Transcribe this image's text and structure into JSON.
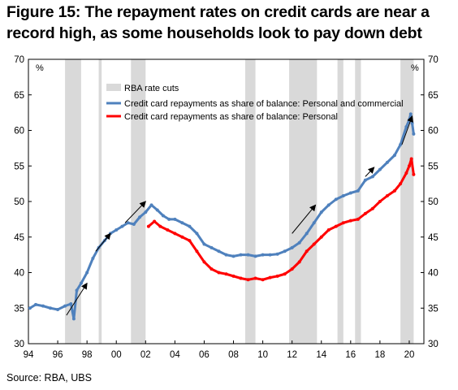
{
  "title": "Figure 15: The repayment rates on credit cards are near a record high, as some households look to pay down debt",
  "source": "Source:  RBA, UBS",
  "chart_data": {
    "type": "line",
    "title": "Figure 15: The repayment rates on credit cards are near a record high, as some households look to pay down debt",
    "xlabel": "",
    "ylabel": "%",
    "ylabel_right": "%",
    "xlim": [
      1994,
      2021
    ],
    "ylim": [
      30,
      70
    ],
    "x_ticks": [
      1994,
      1996,
      1998,
      2000,
      2002,
      2004,
      2006,
      2008,
      2010,
      2012,
      2014,
      2016,
      2018,
      2020
    ],
    "x_tick_labels": [
      "94",
      "96",
      "98",
      "00",
      "02",
      "04",
      "06",
      "08",
      "10",
      "12",
      "14",
      "16",
      "18",
      "20"
    ],
    "y_ticks": [
      30,
      35,
      40,
      45,
      50,
      55,
      60,
      65,
      70
    ],
    "grid": false,
    "legend_position": "top-center",
    "shaded_regions_name": "RBA rate cuts",
    "shaded_color": "#d9d9d9",
    "shaded_regions": [
      [
        1996.5,
        1997.6
      ],
      [
        1998.8,
        1999.0
      ],
      [
        2001.0,
        2002.0
      ],
      [
        2008.8,
        2009.5
      ],
      [
        2011.8,
        2013.7
      ],
      [
        2015.1,
        2015.5
      ],
      [
        2016.3,
        2016.7
      ],
      [
        2019.4,
        2020.3
      ]
    ],
    "series": [
      {
        "name": "Credit card repayments as share of balance: Personal and commercial",
        "color": "#4f81bd",
        "x": [
          1994.1,
          1994.5,
          1995.0,
          1995.5,
          1996.0,
          1996.5,
          1996.9,
          1997.1,
          1997.3,
          1997.6,
          1998.0,
          1998.4,
          1998.8,
          1999.2,
          1999.6,
          2000.0,
          2000.4,
          2000.8,
          2001.2,
          2001.6,
          2002.0,
          2002.4,
          2002.8,
          2003.2,
          2003.6,
          2004.0,
          2004.5,
          2005.0,
          2005.5,
          2006.0,
          2006.5,
          2007.0,
          2007.5,
          2008.0,
          2008.5,
          2009.0,
          2009.5,
          2010.0,
          2010.5,
          2011.0,
          2011.5,
          2012.0,
          2012.5,
          2013.0,
          2013.5,
          2014.0,
          2014.5,
          2015.0,
          2015.5,
          2016.0,
          2016.5,
          2017.0,
          2017.5,
          2018.0,
          2018.5,
          2019.0,
          2019.4,
          2019.8,
          2020.0,
          2020.1,
          2020.2,
          2020.3
        ],
        "values": [
          35.0,
          35.5,
          35.3,
          35.0,
          34.8,
          35.3,
          35.6,
          33.5,
          37.5,
          38.5,
          40.0,
          42.0,
          43.5,
          44.5,
          45.5,
          46.0,
          46.5,
          47.0,
          46.8,
          47.8,
          48.5,
          49.5,
          48.8,
          48.0,
          47.5,
          47.5,
          47.0,
          46.5,
          45.5,
          44.0,
          43.5,
          43.0,
          42.5,
          42.3,
          42.5,
          42.5,
          42.3,
          42.5,
          42.5,
          42.6,
          43.0,
          43.5,
          44.2,
          45.5,
          47.0,
          48.5,
          49.5,
          50.3,
          50.8,
          51.2,
          51.5,
          53.0,
          53.5,
          54.5,
          55.5,
          56.5,
          58.0,
          60.5,
          61.5,
          62.3,
          61.0,
          59.5
        ]
      },
      {
        "name": "Credit card repayments as share of balance: Personal",
        "color": "#ff0000",
        "x": [
          2002.2,
          2002.6,
          2003.0,
          2003.5,
          2004.0,
          2004.5,
          2005.0,
          2005.5,
          2006.0,
          2006.5,
          2007.0,
          2007.5,
          2008.0,
          2008.5,
          2009.0,
          2009.5,
          2010.0,
          2010.5,
          2011.0,
          2011.5,
          2012.0,
          2012.5,
          2013.0,
          2013.5,
          2014.0,
          2014.5,
          2015.0,
          2015.5,
          2016.0,
          2016.5,
          2017.0,
          2017.5,
          2018.0,
          2018.5,
          2019.0,
          2019.4,
          2019.8,
          2020.0,
          2020.15,
          2020.3
        ],
        "values": [
          46.5,
          47.2,
          46.5,
          46.0,
          45.5,
          45.0,
          44.5,
          43.0,
          41.5,
          40.5,
          40.0,
          39.8,
          39.5,
          39.2,
          39.0,
          39.2,
          39.0,
          39.3,
          39.5,
          39.8,
          40.5,
          41.5,
          43.0,
          44.0,
          45.0,
          46.0,
          46.5,
          47.0,
          47.3,
          47.5,
          48.3,
          49.0,
          50.0,
          50.8,
          51.5,
          52.5,
          54.0,
          55.0,
          56.0,
          53.8
        ]
      }
    ],
    "arrows": [
      {
        "from": [
          1996.6,
          34.0
        ],
        "to": [
          1998.0,
          38.5
        ]
      },
      {
        "from": [
          1998.6,
          43.0
        ],
        "to": [
          1999.6,
          45.5
        ]
      },
      {
        "from": [
          2000.6,
          47.0
        ],
        "to": [
          2002.0,
          50.0
        ]
      },
      {
        "from": [
          2012.0,
          45.5
        ],
        "to": [
          2013.6,
          49.5
        ]
      },
      {
        "from": [
          2017.0,
          53.5
        ],
        "to": [
          2017.6,
          54.8
        ]
      },
      {
        "from": [
          2019.5,
          58.0
        ],
        "to": [
          2020.2,
          62.0
        ]
      }
    ]
  }
}
